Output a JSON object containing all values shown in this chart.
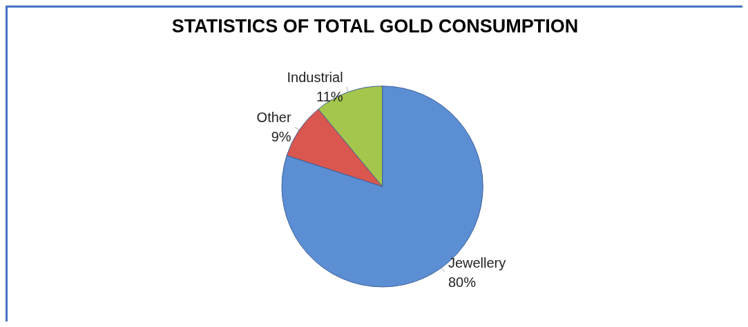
{
  "chart_data": {
    "type": "pie",
    "title": "STATISTICS OF TOTAL GOLD CONSUMPTION",
    "categories": [
      "Jewellery",
      "Other",
      "Industrial"
    ],
    "values": [
      80,
      9,
      11
    ],
    "colors": [
      "#5b8ed3",
      "#d9574f",
      "#a5c64c"
    ],
    "value_labels": [
      "80%",
      "9%",
      "11%"
    ],
    "legend": false
  }
}
